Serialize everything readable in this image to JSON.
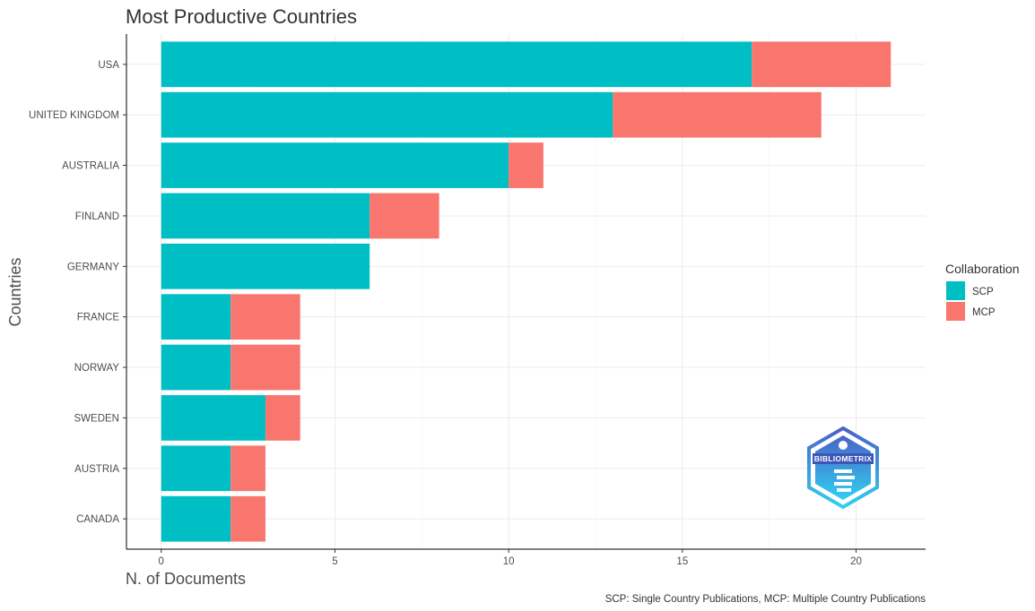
{
  "chart_data": {
    "type": "bar",
    "orientation": "horizontal",
    "stacked": true,
    "title": "Most Productive Countries",
    "xlabel": "N. of Documents",
    "ylabel": "Countries",
    "caption": "SCP: Single Country Publications, MCP: Multiple Country Publications",
    "categories": [
      "USA",
      "UNITED KINGDOM",
      "AUSTRALIA",
      "FINLAND",
      "GERMANY",
      "FRANCE",
      "NORWAY",
      "SWEDEN",
      "AUSTRIA",
      "CANADA"
    ],
    "series": [
      {
        "name": "SCP",
        "color": "#00BFC4",
        "values": [
          17,
          13,
          10,
          6,
          6,
          2,
          2,
          3,
          2,
          2
        ]
      },
      {
        "name": "MCP",
        "color": "#F8766D",
        "values": [
          4,
          6,
          1,
          2,
          0,
          2,
          2,
          1,
          1,
          1
        ]
      }
    ],
    "xlim": [
      -1,
      22
    ],
    "xticks": [
      0,
      5,
      10,
      15,
      20
    ],
    "grid": true,
    "legend": {
      "title": "Collaboration",
      "position": "right",
      "entries": [
        "SCP",
        "MCP"
      ]
    }
  },
  "logo": {
    "text": "BIBLIOMETRIX",
    "icon": "bibliometrix-logo"
  }
}
